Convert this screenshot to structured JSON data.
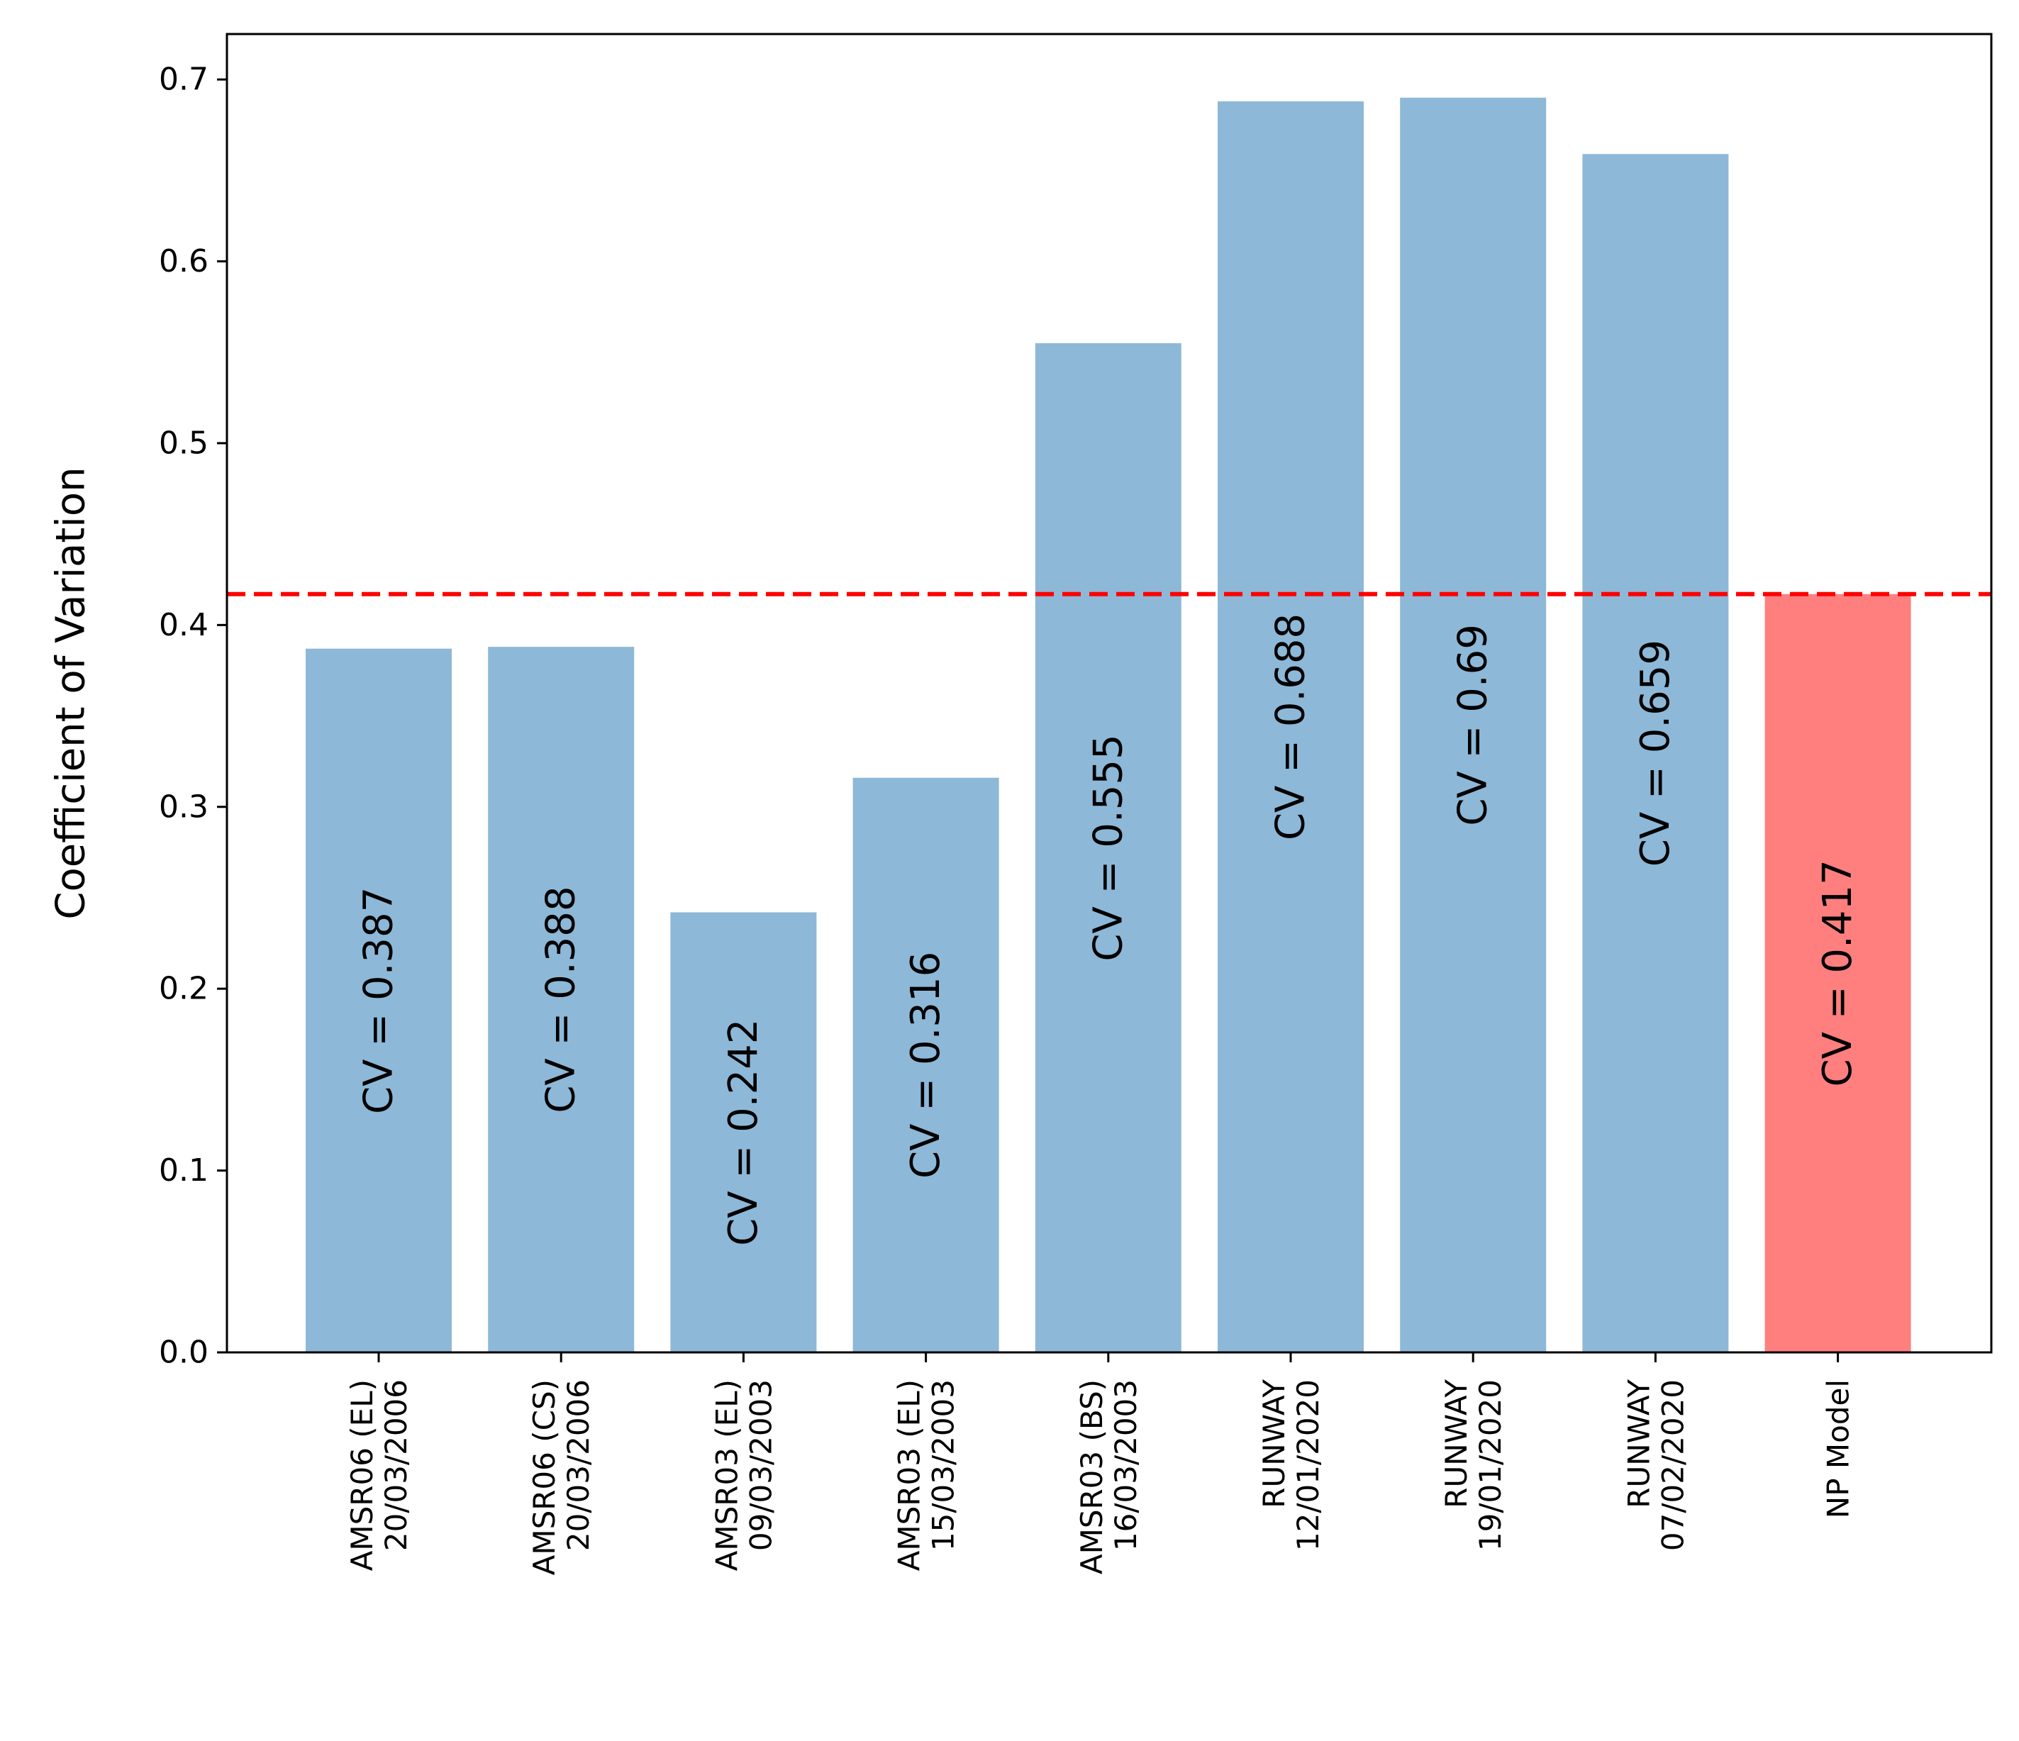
{
  "chart_data": {
    "type": "bar",
    "title": "",
    "xlabel": "",
    "ylabel": "Coefficient of Variation",
    "ylim": [
      0,
      0.725
    ],
    "yticks": [
      "0.0",
      "0.1",
      "0.2",
      "0.3",
      "0.4",
      "0.5",
      "0.6",
      "0.7"
    ],
    "grid": false,
    "categories": [
      [
        "AMSR06 (EL)",
        "20/03/2006"
      ],
      [
        "AMSR06 (CS)",
        "20/03/2006"
      ],
      [
        "AMSR03 (EL)",
        "09/03/2003"
      ],
      [
        "AMSR03 (EL)",
        "15/03/2003"
      ],
      [
        "AMSR03 (BS)",
        "16/03/2003"
      ],
      [
        "RUNWAY",
        "12/01/2020"
      ],
      [
        "RUNWAY",
        "19/01/2020"
      ],
      [
        "RUNWAY",
        "07/02/2020"
      ],
      [
        "NP Model"
      ]
    ],
    "values": [
      0.387,
      0.388,
      0.242,
      0.316,
      0.555,
      0.688,
      0.69,
      0.659,
      0.417
    ],
    "bar_labels": [
      "CV = 0.387",
      "CV = 0.388",
      "CV = 0.242",
      "CV = 0.316",
      "CV = 0.555",
      "CV = 0.688",
      "CV = 0.69",
      "CV = 0.659",
      "CV = 0.417"
    ],
    "bar_colors": [
      "#8db8d8",
      "#8db8d8",
      "#8db8d8",
      "#8db8d8",
      "#8db8d8",
      "#8db8d8",
      "#8db8d8",
      "#8db8d8",
      "#ff7f7f"
    ],
    "reference_line": {
      "value": 0.417,
      "color": "#ff0000",
      "style": "dashed"
    }
  }
}
